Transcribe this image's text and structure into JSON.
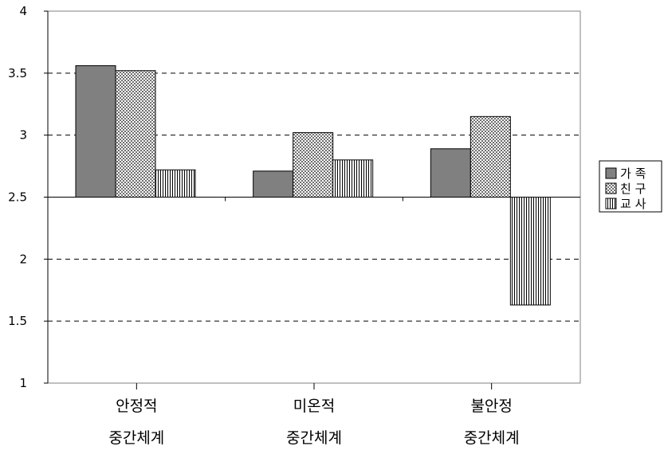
{
  "chart_data": {
    "type": "bar",
    "baseline": 2.5,
    "ylim": [
      1,
      4
    ],
    "yticks": [
      "1",
      "1.5",
      "2",
      "2.5",
      "3",
      "3.5",
      "4"
    ],
    "grid": "dashed horizontal",
    "legend_position": "right",
    "categories": [
      {
        "line1": "안정적",
        "line2": "중간체계"
      },
      {
        "line1": "미온적",
        "line2": "중간체계"
      },
      {
        "line1": "불안정",
        "line2": "중간체계"
      }
    ],
    "series": [
      {
        "name": "가 족",
        "values": [
          3.56,
          2.71,
          2.89
        ],
        "fill": "#808080"
      },
      {
        "name": "친 구",
        "values": [
          3.52,
          3.02,
          3.15
        ],
        "fill": "checker"
      },
      {
        "name": "교 사",
        "values": [
          2.72,
          2.8,
          1.63
        ],
        "fill": "vertical-lines"
      }
    ]
  }
}
